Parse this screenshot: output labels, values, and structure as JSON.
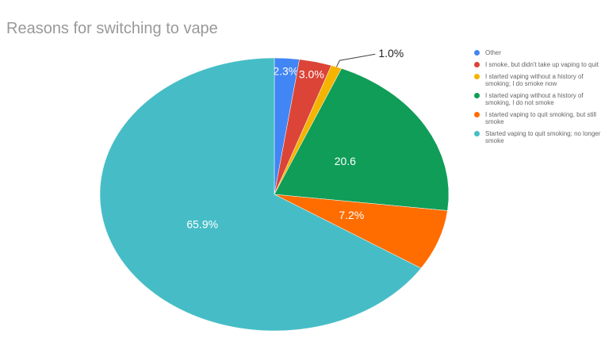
{
  "chart_data": {
    "type": "pie",
    "title": "Reasons for switching to vape",
    "categories": [
      "Other",
      "I smoke, but didn't take up vaping to quit",
      "I started vaping without a history of smoking; I do smoke now",
      "I started vaping without a history of smoking, I do not smoke",
      "I started vaping to quit smoking, but still smoke",
      "Started vaping to quit smoking; no longer smoke"
    ],
    "values": [
      2.3,
      3.0,
      1.0,
      20.6,
      7.2,
      65.9
    ],
    "value_labels": [
      "2.3%",
      "3.0%",
      "1.0%",
      "20.6",
      "7.2%",
      "65.9%"
    ],
    "colors": [
      "#4285f4",
      "#db4437",
      "#f4b400",
      "#0f9d58",
      "#ff6d01",
      "#46bdc6"
    ],
    "legend": "right"
  }
}
